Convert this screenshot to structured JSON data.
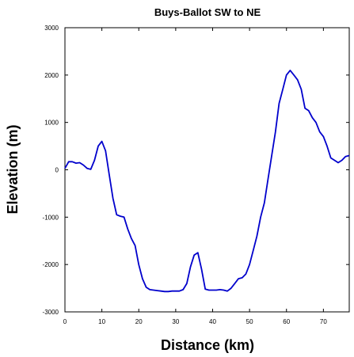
{
  "chart_data": {
    "type": "line",
    "title": "Buys-Ballot SW to NE",
    "xlabel": "Distance (km)",
    "ylabel": "Elevation (m)",
    "xlim": [
      0,
      77
    ],
    "ylim": [
      -3000,
      3000
    ],
    "xticks": [
      "0",
      "10",
      "20",
      "30",
      "40",
      "50",
      "60",
      "70"
    ],
    "yticks": [
      "-3000",
      "-2000",
      "-1000",
      "0",
      "1000",
      "2000",
      "3000"
    ],
    "line_color": "#0000cc",
    "grid": false,
    "series": [
      {
        "x": [
          0,
          1,
          2,
          3,
          4,
          5,
          6,
          7,
          8,
          9,
          10,
          11,
          12,
          13,
          14,
          15,
          16,
          17,
          18,
          19,
          20,
          21,
          22,
          23,
          24,
          25,
          26,
          27,
          28,
          29,
          30,
          31,
          32,
          33,
          34,
          35,
          36,
          37,
          38,
          39,
          40,
          41,
          42,
          43,
          44,
          45,
          46,
          47,
          48,
          49,
          50,
          51,
          52,
          53,
          54,
          55,
          56,
          57,
          58,
          59,
          60,
          61,
          62,
          63,
          64,
          65,
          66,
          67,
          68,
          69,
          70,
          71,
          72,
          73,
          74,
          75,
          76,
          77
        ],
        "y": [
          30,
          170,
          170,
          140,
          150,
          100,
          30,
          10,
          200,
          500,
          600,
          400,
          -100,
          -600,
          -950,
          -980,
          -1000,
          -1250,
          -1450,
          -1600,
          -2000,
          -2300,
          -2480,
          -2530,
          -2540,
          -2550,
          -2560,
          -2570,
          -2570,
          -2560,
          -2560,
          -2560,
          -2530,
          -2400,
          -2050,
          -1800,
          -1750,
          -2100,
          -2520,
          -2540,
          -2540,
          -2540,
          -2530,
          -2540,
          -2560,
          -2500,
          -2400,
          -2300,
          -2280,
          -2200,
          -2000,
          -1700,
          -1400,
          -1000,
          -700,
          -200,
          300,
          800,
          1400,
          1700,
          2000,
          2100,
          2000,
          1900,
          1700,
          1300,
          1250,
          1100,
          1000,
          800,
          700,
          500,
          250,
          200,
          150,
          200,
          280,
          300
        ]
      }
    ]
  }
}
